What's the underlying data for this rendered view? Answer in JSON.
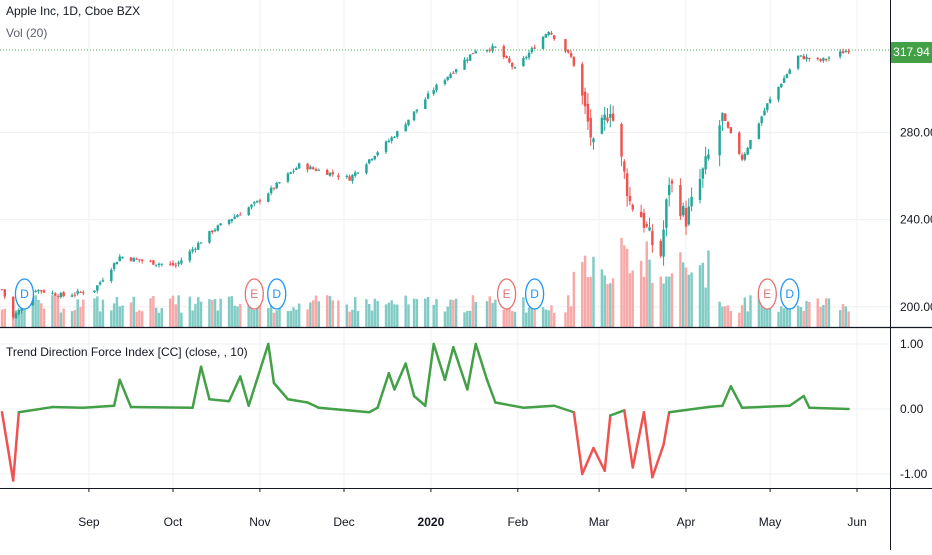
{
  "header": {
    "title": "Apple Inc, 1D, Cboe BZX",
    "volume_label": "Vol (20)",
    "indicator_label": "Trend Direction Force Index [CC] (close, , 10)",
    "last_price": "317.94"
  },
  "colors": {
    "up": "#26a69a",
    "down": "#ef5350",
    "vol_up": "#80cbc4",
    "vol_down": "#f7a9a7",
    "indicator_pos": "#43a047",
    "indicator_neg": "#ef5350",
    "price_line": "#4caf50",
    "earnings": "#e57373",
    "dividend": "#2196f3"
  },
  "chart_data": [
    {
      "type": "candlestick",
      "title": "Apple Inc, 1D, Cboe BZX",
      "y_ticks": [
        "200.00",
        "240.00",
        "280.00"
      ],
      "ylim": [
        190,
        325
      ],
      "x_ticks": [
        "Sep",
        "Oct",
        "Nov",
        "Dec",
        "2020",
        "Feb",
        "Mar",
        "Apr",
        "May",
        "Jun"
      ],
      "last_price": 317.94,
      "anchors": [
        [
          "2019-08-01",
          208
        ],
        [
          "2019-08-05",
          195
        ],
        [
          "2019-08-13",
          208
        ],
        [
          "2019-08-23",
          205
        ],
        [
          "2019-09-03",
          208
        ],
        [
          "2019-09-12",
          223
        ],
        [
          "2019-09-25",
          220
        ],
        [
          "2019-10-02",
          219
        ],
        [
          "2019-10-15",
          235
        ],
        [
          "2019-10-31",
          248
        ],
        [
          "2019-11-15",
          265
        ],
        [
          "2019-12-03",
          259
        ],
        [
          "2019-12-20",
          280
        ],
        [
          "2020-01-02",
          300
        ],
        [
          "2020-01-17",
          318
        ],
        [
          "2020-01-24",
          319
        ],
        [
          "2020-01-31",
          309
        ],
        [
          "2020-02-12",
          327
        ],
        [
          "2020-02-21",
          313
        ],
        [
          "2020-02-28",
          273
        ],
        [
          "2020-03-05",
          292
        ],
        [
          "2020-03-12",
          248
        ],
        [
          "2020-03-16",
          242
        ],
        [
          "2020-03-20",
          229
        ],
        [
          "2020-03-23",
          224
        ],
        [
          "2020-03-26",
          258
        ],
        [
          "2020-04-01",
          240
        ],
        [
          "2020-04-14",
          287
        ],
        [
          "2020-04-21",
          268
        ],
        [
          "2020-04-30",
          293
        ],
        [
          "2020-05-11",
          315
        ],
        [
          "2020-05-19",
          313
        ],
        [
          "2020-05-29",
          318
        ]
      ],
      "volume": {
        "label": "Vol (20)"
      },
      "events": [
        {
          "type": "D",
          "date": "2019-08-09"
        },
        {
          "type": "E",
          "date": "2019-10-30"
        },
        {
          "type": "D",
          "date": "2019-11-07"
        },
        {
          "type": "E",
          "date": "2020-01-28"
        },
        {
          "type": "D",
          "date": "2020-02-07"
        },
        {
          "type": "E",
          "date": "2020-04-30"
        },
        {
          "type": "D",
          "date": "2020-05-08"
        }
      ]
    },
    {
      "type": "line",
      "title": "Trend Direction Force Index [CC] (close, , 10)",
      "y_ticks": [
        "1.00",
        "0.00",
        "-1.00"
      ],
      "ylim": [
        -1.2,
        1.2
      ],
      "points": [
        [
          "2019-08-01",
          -0.05
        ],
        [
          "2019-08-05",
          -1.1
        ],
        [
          "2019-08-07",
          -0.05
        ],
        [
          "2019-08-19",
          0.03
        ],
        [
          "2019-08-30",
          0.02
        ],
        [
          "2019-09-10",
          0.05
        ],
        [
          "2019-09-12",
          0.45
        ],
        [
          "2019-09-16",
          0.03
        ],
        [
          "2019-10-08",
          0.02
        ],
        [
          "2019-10-11",
          0.65
        ],
        [
          "2019-10-14",
          0.15
        ],
        [
          "2019-10-21",
          0.12
        ],
        [
          "2019-10-25",
          0.5
        ],
        [
          "2019-10-28",
          0.05
        ],
        [
          "2019-11-04",
          1.0
        ],
        [
          "2019-11-06",
          0.4
        ],
        [
          "2019-11-11",
          0.15
        ],
        [
          "2019-11-18",
          0.1
        ],
        [
          "2019-11-22",
          0.02
        ],
        [
          "2019-12-10",
          -0.05
        ],
        [
          "2019-12-13",
          0.02
        ],
        [
          "2019-12-17",
          0.55
        ],
        [
          "2019-12-19",
          0.3
        ],
        [
          "2019-12-23",
          0.7
        ],
        [
          "2019-12-26",
          0.2
        ],
        [
          "2019-12-30",
          0.05
        ],
        [
          "2020-01-02",
          1.0
        ],
        [
          "2020-01-06",
          0.45
        ],
        [
          "2020-01-09",
          0.95
        ],
        [
          "2020-01-14",
          0.3
        ],
        [
          "2020-01-17",
          1.0
        ],
        [
          "2020-01-21",
          0.45
        ],
        [
          "2020-01-24",
          0.1
        ],
        [
          "2020-02-03",
          0.02
        ],
        [
          "2020-02-14",
          0.05
        ],
        [
          "2020-02-21",
          -0.05
        ],
        [
          "2020-02-24",
          -1.0
        ],
        [
          "2020-02-28",
          -0.6
        ],
        [
          "2020-03-03",
          -0.95
        ],
        [
          "2020-03-05",
          -0.1
        ],
        [
          "2020-03-10",
          -0.02
        ],
        [
          "2020-03-13",
          -0.9
        ],
        [
          "2020-03-17",
          -0.05
        ],
        [
          "2020-03-20",
          -1.05
        ],
        [
          "2020-03-24",
          -0.55
        ],
        [
          "2020-03-26",
          -0.05
        ],
        [
          "2020-04-09",
          0.03
        ],
        [
          "2020-04-14",
          0.05
        ],
        [
          "2020-04-17",
          0.35
        ],
        [
          "2020-04-21",
          0.02
        ],
        [
          "2020-05-08",
          0.05
        ],
        [
          "2020-05-13",
          0.2
        ],
        [
          "2020-05-15",
          0.02
        ],
        [
          "2020-05-29",
          0.0
        ]
      ]
    }
  ]
}
